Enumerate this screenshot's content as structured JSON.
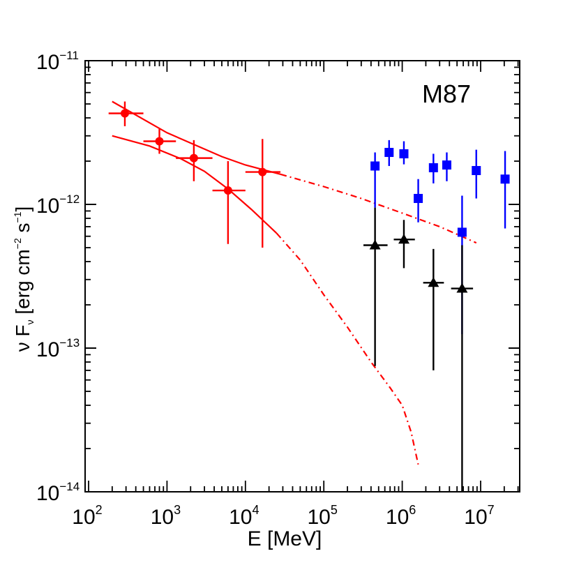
{
  "chart_data": {
    "type": "scatter",
    "title": "M87",
    "xlabel": "E [MeV]",
    "ylabel": {
      "parts": [
        "ν F",
        "ν",
        " [erg cm",
        "−2",
        " s",
        "−1",
        "]"
      ]
    },
    "xscale": "log",
    "yscale": "log",
    "xlim": [
      200,
      35000000
    ],
    "ylim": [
      1e-14,
      1e-11
    ],
    "x_ticks": [
      {
        "value": 100,
        "base": "10",
        "exp": "2"
      },
      {
        "value": 1000,
        "base": "10",
        "exp": "3"
      },
      {
        "value": 10000,
        "base": "10",
        "exp": "4"
      },
      {
        "value": 100000,
        "base": "10",
        "exp": "5"
      },
      {
        "value": 1000000,
        "base": "10",
        "exp": "6"
      },
      {
        "value": 10000000,
        "base": "10",
        "exp": "7"
      }
    ],
    "y_ticks": [
      {
        "value": 1e-11,
        "base": "10",
        "exp": "−11"
      },
      {
        "value": 1e-12,
        "base": "10",
        "exp": "−12"
      },
      {
        "value": 1e-13,
        "base": "10",
        "exp": "−13"
      },
      {
        "value": 1e-14,
        "base": "10",
        "exp": "−14"
      }
    ],
    "grid": false,
    "legend": null,
    "series": [
      {
        "marker": "circle",
        "color": "#ff0000",
        "points": [
          {
            "x": 290,
            "y": 4.3e-12,
            "x_lo": 180,
            "x_hi": 500,
            "y_lo": 3.5e-12,
            "y_hi": 5.2e-12
          },
          {
            "x": 800,
            "y": 2.75e-12,
            "x_lo": 500,
            "x_hi": 1300,
            "y_lo": 2.25e-12,
            "y_hi": 3.35e-12
          },
          {
            "x": 2200,
            "y": 2.1e-12,
            "x_lo": 1300,
            "x_hi": 3800,
            "y_lo": 1.45e-12,
            "y_hi": 2.8e-12
          },
          {
            "x": 6000,
            "y": 1.25e-12,
            "x_lo": 3800,
            "x_hi": 10000,
            "y_lo": 5.3e-13,
            "y_hi": 2e-12
          },
          {
            "x": 16500,
            "y": 1.68e-12,
            "x_lo": 10000,
            "x_hi": 28000,
            "y_lo": 5e-13,
            "y_hi": 2.85e-12
          }
        ]
      },
      {
        "marker": "square",
        "color": "#0000ff",
        "points": [
          {
            "x": 450000,
            "y": 1.85e-12,
            "x_lo": 400000,
            "x_hi": 510000,
            "y_lo": 9.5e-13,
            "y_hi": 2.3e-12
          },
          {
            "x": 680000,
            "y": 2.3e-12,
            "x_lo": 600000,
            "x_hi": 770000,
            "y_lo": 1.85e-12,
            "y_hi": 2.8e-12
          },
          {
            "x": 1050000,
            "y": 2.25e-12,
            "x_lo": 920000,
            "x_hi": 1180000,
            "y_lo": 1.9e-12,
            "y_hi": 2.75e-12
          },
          {
            "x": 1600000,
            "y": 1.1e-12,
            "x_lo": 1420000,
            "x_hi": 1800000,
            "y_lo": 7.5e-13,
            "y_hi": 1.5e-12
          },
          {
            "x": 2500000,
            "y": 1.8e-12,
            "x_lo": 2200000,
            "x_hi": 2800000,
            "y_lo": 1.4e-12,
            "y_hi": 2.25e-12
          },
          {
            "x": 3700000,
            "y": 1.88e-12,
            "x_lo": 3250000,
            "x_hi": 4200000,
            "y_lo": 1.45e-12,
            "y_hi": 2.3e-12
          },
          {
            "x": 5800000,
            "y": 6.4e-13,
            "x_lo": 5100000,
            "x_hi": 6500000,
            "y_lo": 1.25e-13,
            "y_hi": 1.15e-12
          },
          {
            "x": 8800000,
            "y": 1.72e-12,
            "x_lo": 7800000,
            "x_hi": 9900000,
            "y_lo": 1.1e-12,
            "y_hi": 2.4e-12
          },
          {
            "x": 20500000,
            "y": 1.5e-12,
            "x_lo": 18000000,
            "x_hi": 23000000,
            "y_lo": 6.8e-13,
            "y_hi": 2.35e-12
          }
        ]
      },
      {
        "marker": "triangle",
        "color": "#000000",
        "points": [
          {
            "x": 450000,
            "y": 5.2e-13,
            "x_lo": 320000,
            "x_hi": 650000,
            "y_lo": 7.5e-14,
            "y_hi": 9.5e-13
          },
          {
            "x": 1050000,
            "y": 5.7e-13,
            "x_lo": 780000,
            "x_hi": 1450000,
            "y_lo": 3.6e-13,
            "y_hi": 7.8e-13
          },
          {
            "x": 2500000,
            "y": 2.85e-13,
            "x_lo": 1850000,
            "x_hi": 3400000,
            "y_lo": 7e-14,
            "y_hi": 4.9e-13
          },
          {
            "x": 5800000,
            "y": 2.6e-13,
            "x_lo": 4200000,
            "x_hi": 8000000,
            "y_lo": 1e-14,
            "y_hi": 5.2e-13
          }
        ]
      }
    ],
    "model_curves": [
      {
        "color": "#ff0000",
        "solid": [
          [
            200,
            5.2e-12
          ],
          [
            1000,
            3.15e-12
          ],
          [
            5000,
            2.15e-12
          ],
          [
            10000,
            1.88e-12
          ],
          [
            28000,
            1.62e-12
          ]
        ],
        "dashed": [
          [
            28000,
            1.62e-12
          ],
          [
            100000,
            1.33e-12
          ],
          [
            300000,
            1.1e-12
          ],
          [
            1000000,
            8.7e-13
          ],
          [
            3000000,
            7e-13
          ],
          [
            8800000,
            5.4e-13
          ]
        ]
      },
      {
        "color": "#ff0000",
        "solid": [
          [
            200,
            3e-12
          ],
          [
            600,
            2.55e-12
          ],
          [
            1500,
            2.08e-12
          ],
          [
            3000,
            1.7e-12
          ],
          [
            6000,
            1.28e-12
          ],
          [
            12000,
            9.2e-13
          ],
          [
            25000,
            6.3e-13
          ]
        ],
        "dashed": [
          [
            25000,
            6.3e-13
          ],
          [
            50000,
            4.1e-13
          ],
          [
            100000,
            2.35e-13
          ],
          [
            200000,
            1.4e-13
          ],
          [
            400000,
            8e-14
          ],
          [
            700000,
            5.3e-14
          ],
          [
            1000000,
            4e-14
          ],
          [
            1300000,
            2.6e-14
          ],
          [
            1600000,
            1.55e-14
          ]
        ]
      }
    ]
  }
}
